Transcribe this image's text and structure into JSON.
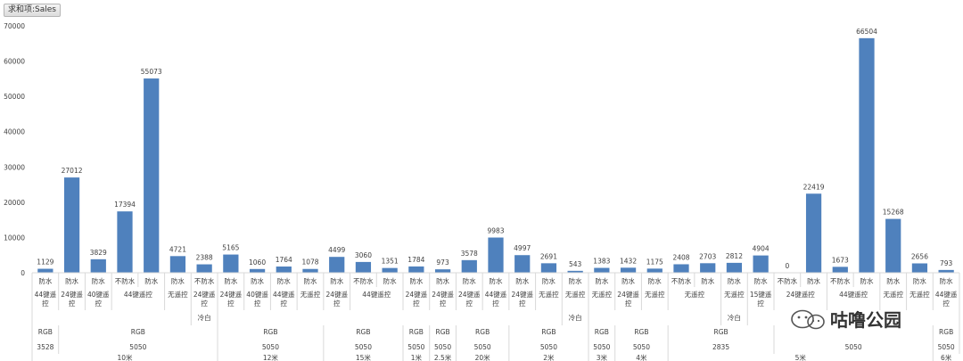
{
  "field_tag": "求和项:Sales",
  "watermark_text": "咕噜公园",
  "chart_data": {
    "type": "bar",
    "title": "",
    "xlabel": "",
    "ylabel": "",
    "ylim": [
      0,
      70000
    ],
    "yticks": [
      0,
      10000,
      20000,
      30000,
      40000,
      50000,
      60000,
      70000
    ],
    "grid": false,
    "bar_color": "#4f81bd",
    "categories": [
      {
        "wp": "防水",
        "ctrl": "44键遥控"
      },
      {
        "wp": "防水",
        "ctrl": "24键遥控"
      },
      {
        "wp": "防水",
        "ctrl": "40键遥控"
      },
      {
        "wp": "不防水",
        "ctrl": "44键遥控"
      },
      {
        "wp": "防水",
        "ctrl": "44键遥控"
      },
      {
        "wp": "防水",
        "ctrl": "无遥控"
      },
      {
        "wp": "不防水",
        "ctrl": "24键遥控"
      },
      {
        "wp": "防水",
        "ctrl": "24键遥控"
      },
      {
        "wp": "防水",
        "ctrl": "40键遥控"
      },
      {
        "wp": "防水",
        "ctrl": "44键遥控"
      },
      {
        "wp": "防水",
        "ctrl": "无遥控"
      },
      {
        "wp": "防水",
        "ctrl": "24键遥控"
      },
      {
        "wp": "不防水",
        "ctrl": "44键遥控"
      },
      {
        "wp": "防水",
        "ctrl": "44键遥控"
      },
      {
        "wp": "防水",
        "ctrl": "24键遥控"
      },
      {
        "wp": "防水",
        "ctrl": "24键遥控"
      },
      {
        "wp": "防水",
        "ctrl": "24键遥控"
      },
      {
        "wp": "防水",
        "ctrl": "44键遥控"
      },
      {
        "wp": "防水",
        "ctrl": "24键遥控"
      },
      {
        "wp": "防水",
        "ctrl": "无遥控"
      },
      {
        "wp": "防水",
        "ctrl": "无遥控"
      },
      {
        "wp": "防水",
        "ctrl": "无遥控"
      },
      {
        "wp": "防水",
        "ctrl": "24键遥控"
      },
      {
        "wp": "防水",
        "ctrl": "无遥控"
      },
      {
        "wp": "不防水",
        "ctrl": "无遥控"
      },
      {
        "wp": "防水",
        "ctrl": "无遥控"
      },
      {
        "wp": "防水",
        "ctrl": "无遥控"
      },
      {
        "wp": "防水",
        "ctrl": "15键遥控"
      },
      {
        "wp": "不防水",
        "ctrl": "24键遥控"
      },
      {
        "wp": "防水",
        "ctrl": "24键遥控"
      },
      {
        "wp": "不防水",
        "ctrl": "44键遥控"
      },
      {
        "wp": "防水",
        "ctrl": "44键遥控"
      },
      {
        "wp": "防水",
        "ctrl": "无遥控"
      },
      {
        "wp": "防水",
        "ctrl": "无遥控"
      },
      {
        "wp": "防水",
        "ctrl": "44键遥控"
      }
    ],
    "series": [
      {
        "values": [
          1129,
          27012,
          3829,
          17394,
          55073,
          4721,
          2388,
          5165,
          1060,
          1764,
          1078,
          4499,
          3060,
          1351,
          1784,
          973,
          3578,
          9983,
          4997,
          2691,
          543,
          1383,
          1432,
          1175,
          2408,
          2703,
          2812,
          4904,
          0,
          22419,
          1673,
          66504,
          15268,
          2656,
          793
        ]
      }
    ],
    "ctrl_groups": [
      {
        "label": "44键遥控",
        "span": 1
      },
      {
        "label": "24键遥控",
        "span": 1
      },
      {
        "label": "40键遥控",
        "span": 1
      },
      {
        "label": "44键遥控",
        "span": 2
      },
      {
        "label": "无遥控",
        "span": 1
      },
      {
        "label": "24键遥控",
        "span": 1
      },
      {
        "label": "24键遥控",
        "span": 1
      },
      {
        "label": "40键遥控",
        "span": 1
      },
      {
        "label": "44键遥控",
        "span": 1
      },
      {
        "label": "无遥控",
        "span": 1
      },
      {
        "label": "24键遥控",
        "span": 1
      },
      {
        "label": "44键遥控",
        "span": 2
      },
      {
        "label": "24键遥控",
        "span": 1
      },
      {
        "label": "24键遥控",
        "span": 1
      },
      {
        "label": "24键遥控",
        "span": 1
      },
      {
        "label": "44键遥控",
        "span": 1
      },
      {
        "label": "24键遥控",
        "span": 1
      },
      {
        "label": "无遥控",
        "span": 1
      },
      {
        "label": "无遥控",
        "span": 1
      },
      {
        "label": "无遥控",
        "span": 1
      },
      {
        "label": "24键遥控",
        "span": 1
      },
      {
        "label": "无遥控",
        "span": 1
      },
      {
        "label": "无遥控",
        "span": 2
      },
      {
        "label": "无遥控",
        "span": 1
      },
      {
        "label": "15键遥控",
        "span": 1
      },
      {
        "label": "24键遥控",
        "span": 2
      },
      {
        "label": "44键遥控",
        "span": 2
      },
      {
        "label": "无遥控",
        "span": 1
      },
      {
        "label": "无遥控",
        "span": 1
      },
      {
        "label": "44键遥控",
        "span": 1
      }
    ],
    "color_groups": [
      {
        "label": "",
        "span": 6
      },
      {
        "label": "冷白",
        "span": 1
      },
      {
        "label": "",
        "span": 13
      },
      {
        "label": "冷白",
        "span": 1
      },
      {
        "label": "",
        "span": 5
      },
      {
        "label": "冷白",
        "span": 1
      },
      {
        "label": "",
        "span": 8
      }
    ],
    "chip_groups": [
      {
        "label": "RGB",
        "span": 1
      },
      {
        "label": "RGB",
        "span": 6
      },
      {
        "label": "RGB",
        "span": 4
      },
      {
        "label": "RGB",
        "span": 3
      },
      {
        "label": "RGB",
        "span": 1
      },
      {
        "label": "RGB",
        "span": 1
      },
      {
        "label": "RGB",
        "span": 2
      },
      {
        "label": "RGB",
        "span": 3
      },
      {
        "label": "RGB",
        "span": 1
      },
      {
        "label": "RGB",
        "span": 2
      },
      {
        "label": "RGB",
        "span": 4
      },
      {
        "label": "",
        "span": 6
      },
      {
        "label": "RGB",
        "span": 1
      }
    ],
    "led_groups": [
      {
        "label": "3528",
        "span": 1
      },
      {
        "label": "5050",
        "span": 6
      },
      {
        "label": "5050",
        "span": 4
      },
      {
        "label": "5050",
        "span": 3
      },
      {
        "label": "5050",
        "span": 1
      },
      {
        "label": "5050",
        "span": 1
      },
      {
        "label": "5050",
        "span": 2
      },
      {
        "label": "5050",
        "span": 3
      },
      {
        "label": "5050",
        "span": 1
      },
      {
        "label": "5050",
        "span": 2
      },
      {
        "label": "2835",
        "span": 4
      },
      {
        "label": "5050",
        "span": 6
      },
      {
        "label": "5050",
        "span": 1
      }
    ],
    "length_groups": [
      {
        "label": "10米",
        "span": 7
      },
      {
        "label": "12米",
        "span": 4
      },
      {
        "label": "15米",
        "span": 3
      },
      {
        "label": "1米",
        "span": 1
      },
      {
        "label": "2.5米",
        "span": 1
      },
      {
        "label": "20米",
        "span": 2
      },
      {
        "label": "2米",
        "span": 3
      },
      {
        "label": "3米",
        "span": 1
      },
      {
        "label": "4米",
        "span": 2
      },
      {
        "label": "5米",
        "span": 10
      },
      {
        "label": "6米",
        "span": 1
      }
    ]
  }
}
